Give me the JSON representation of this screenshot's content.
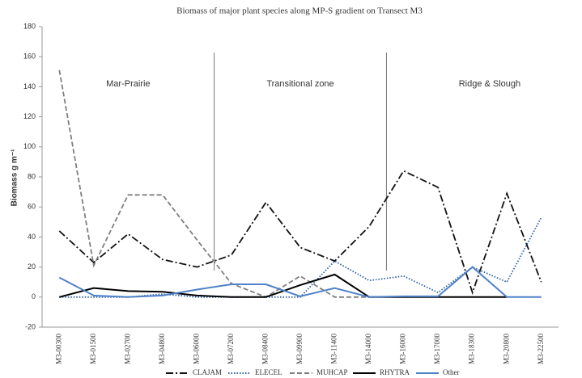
{
  "chart_data": {
    "type": "line",
    "title": "Biomass of major plant species along MP-S gradient on Transect M3",
    "y_label": "Biomass g m⁻¹",
    "annotations": [
      "Mar-Prairie",
      "Transitional zone",
      "Ridge & Slough"
    ],
    "categories": [
      "M3-00300",
      "M3-01500",
      "M3-02700",
      "M3-04800",
      "M3-06000",
      "M3-07200",
      "M3-08400",
      "M3-09900",
      "M3-11400",
      "M3-14000",
      "M3-16000",
      "M3-17000",
      "M3-18300",
      "M3-20800",
      "M3-22500"
    ],
    "series": [
      {
        "name": "CLAJAM",
        "color": "#111111",
        "style": "dashdot",
        "values": [
          44,
          23,
          42,
          25,
          20,
          28,
          63,
          33,
          24,
          47,
          84,
          73,
          3,
          69,
          10
        ]
      },
      {
        "name": "ELECEL",
        "color": "#2e5fa8",
        "style": "dotted",
        "values": [
          0,
          0,
          0,
          2,
          0,
          0,
          0,
          0,
          24,
          11,
          14,
          3,
          20,
          10,
          53
        ]
      },
      {
        "name": "MUHCAP",
        "color": "#7f7f7f",
        "style": "dashed",
        "values": [
          151,
          21,
          68,
          68,
          38,
          9,
          0,
          14,
          0,
          0,
          null,
          null,
          null,
          null,
          null
        ]
      },
      {
        "name": "RHYTRA",
        "color": "#000000",
        "style": "solid",
        "values": [
          0,
          6,
          4,
          3.5,
          1,
          0,
          0,
          8,
          15,
          0,
          0,
          0,
          0,
          0,
          null
        ]
      },
      {
        "name": "Other",
        "color": "#4f81c7",
        "style": "solid",
        "values": [
          13,
          1,
          0,
          1,
          5,
          8.5,
          8.5,
          0.5,
          6,
          0,
          0.5,
          0.5,
          20,
          0,
          0
        ]
      }
    ],
    "ylim": [
      -20,
      180
    ],
    "yticks": [
      -20,
      0,
      20,
      40,
      60,
      80,
      100,
      120,
      140,
      160,
      180
    ],
    "grid": false
  }
}
